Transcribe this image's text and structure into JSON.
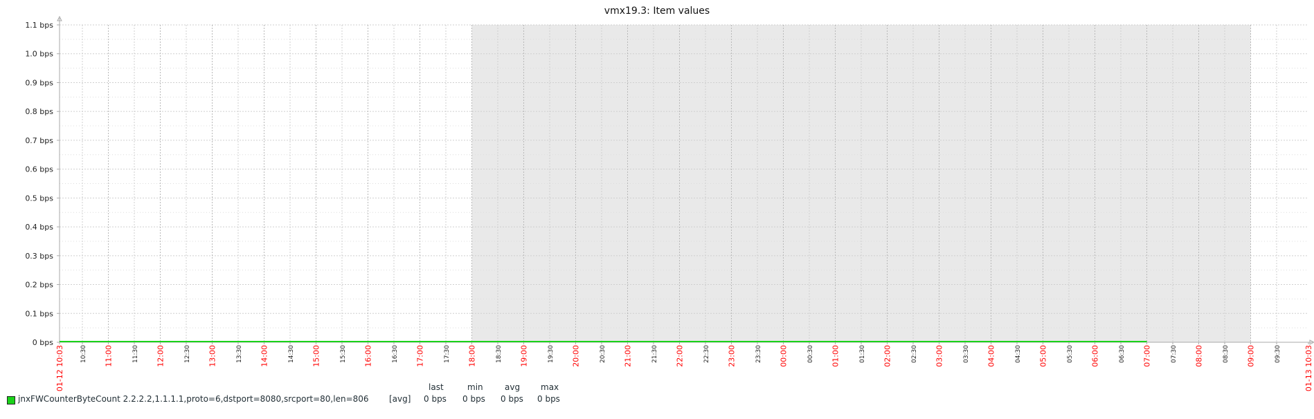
{
  "chart_data": {
    "type": "line",
    "title": "vmx19.3: Item values",
    "ylim": [
      0,
      1.1
    ],
    "yticks": [
      {
        "value": 1.1,
        "label": "1.1 bps"
      },
      {
        "value": 1.0,
        "label": "1.0 bps"
      },
      {
        "value": 0.9,
        "label": "0.9 bps"
      },
      {
        "value": 0.8,
        "label": "0.8 bps"
      },
      {
        "value": 0.7,
        "label": "0.7 bps"
      },
      {
        "value": 0.6,
        "label": "0.6 bps"
      },
      {
        "value": 0.5,
        "label": "0.5 bps"
      },
      {
        "value": 0.4,
        "label": "0.4 bps"
      },
      {
        "value": 0.3,
        "label": "0.3 bps"
      },
      {
        "value": 0.2,
        "label": "0.2 bps"
      },
      {
        "value": 0.1,
        "label": "0.1 bps"
      },
      {
        "value": 0,
        "label": "0 bps"
      }
    ],
    "xlim": [
      "01-12 10:03",
      "01-13 10:03"
    ],
    "xticks": [
      {
        "label": "01-12 10:03",
        "style": "edge"
      },
      {
        "label": "10:30",
        "style": "minor"
      },
      {
        "label": "11:00",
        "style": "major"
      },
      {
        "label": "11:30",
        "style": "minor"
      },
      {
        "label": "12:00",
        "style": "major"
      },
      {
        "label": "12:30",
        "style": "minor"
      },
      {
        "label": "13:00",
        "style": "major"
      },
      {
        "label": "13:30",
        "style": "minor"
      },
      {
        "label": "14:00",
        "style": "major"
      },
      {
        "label": "14:30",
        "style": "minor"
      },
      {
        "label": "15:00",
        "style": "major"
      },
      {
        "label": "15:30",
        "style": "minor"
      },
      {
        "label": "16:00",
        "style": "major"
      },
      {
        "label": "16:30",
        "style": "minor"
      },
      {
        "label": "17:00",
        "style": "major"
      },
      {
        "label": "17:30",
        "style": "minor"
      },
      {
        "label": "18:00",
        "style": "major"
      },
      {
        "label": "18:30",
        "style": "minor"
      },
      {
        "label": "19:00",
        "style": "major"
      },
      {
        "label": "19:30",
        "style": "minor"
      },
      {
        "label": "20:00",
        "style": "major"
      },
      {
        "label": "20:30",
        "style": "minor"
      },
      {
        "label": "21:00",
        "style": "major"
      },
      {
        "label": "21:30",
        "style": "minor"
      },
      {
        "label": "22:00",
        "style": "major"
      },
      {
        "label": "22:30",
        "style": "minor"
      },
      {
        "label": "23:00",
        "style": "major"
      },
      {
        "label": "23:30",
        "style": "minor"
      },
      {
        "label": "00:00",
        "style": "major"
      },
      {
        "label": "00:30",
        "style": "minor"
      },
      {
        "label": "01:00",
        "style": "major"
      },
      {
        "label": "01:30",
        "style": "minor"
      },
      {
        "label": "02:00",
        "style": "major"
      },
      {
        "label": "02:30",
        "style": "minor"
      },
      {
        "label": "03:00",
        "style": "major"
      },
      {
        "label": "03:30",
        "style": "minor"
      },
      {
        "label": "04:00",
        "style": "major"
      },
      {
        "label": "04:30",
        "style": "minor"
      },
      {
        "label": "05:00",
        "style": "major"
      },
      {
        "label": "05:30",
        "style": "minor"
      },
      {
        "label": "06:00",
        "style": "major"
      },
      {
        "label": "06:30",
        "style": "minor"
      },
      {
        "label": "07:00",
        "style": "major"
      },
      {
        "label": "07:30",
        "style": "minor"
      },
      {
        "label": "08:00",
        "style": "major"
      },
      {
        "label": "08:30",
        "style": "minor"
      },
      {
        "label": "09:00",
        "style": "major"
      },
      {
        "label": "09:30",
        "style": "minor"
      },
      {
        "label": "01-13 10:03",
        "style": "edge"
      }
    ],
    "shaded_period": {
      "from": "01-12 18:00",
      "to": "01-13 09:00"
    },
    "series": [
      {
        "name": "jnxFWCounterByteCount 2.2.2.2,1.1.1.1,proto=6,dstport=8080,srcport=80,len=806",
        "color": "#1ad21a",
        "points": [
          {
            "x": "01-12 10:03",
            "y": 0
          },
          {
            "x": "01-13 07:00",
            "y": 0
          }
        ]
      }
    ],
    "grid": true
  },
  "legend": {
    "headers": {
      "last": "last",
      "min": "min",
      "avg": "avg",
      "max": "max"
    },
    "row": {
      "name": "jnxFWCounterByteCount 2.2.2.2,1.1.1.1,proto=6,dstport=8080,srcport=80,len=806",
      "func": "[avg]",
      "last": "0 bps",
      "min": "0 bps",
      "avg": "0 bps",
      "max": "0 bps"
    }
  },
  "colors": {
    "background": "#ffffff",
    "shade": "#e9e9e9",
    "grid": "#cfcfcf",
    "axis": "#aaaaaa",
    "major_label": "#ff0000",
    "minor_label": "#222222",
    "series": "#1ad21a"
  }
}
